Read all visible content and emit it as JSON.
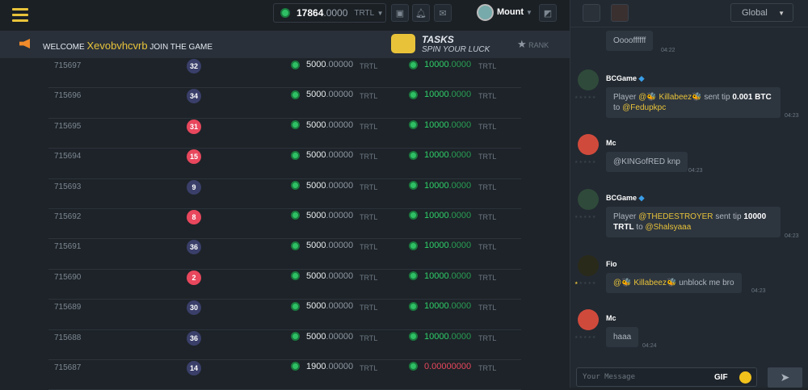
{
  "header": {
    "balance_int": "17864",
    "balance_dec": ".0000",
    "currency": "TRTL",
    "username": "Mount"
  },
  "welcome": {
    "prefix": "WELCOME",
    "name": "Xevobvhcvrb",
    "suffix": "JOIN THE GAME"
  },
  "tasks": {
    "title": "TASKS",
    "subtitle": "SPIN YOUR LUCK"
  },
  "rank_label": "RANK",
  "rows": [
    {
      "id": "715697",
      "num": "32",
      "color": "blue",
      "bet_int": "5000",
      "bet_dec": ".00000",
      "bet_cur": "TRTL",
      "pay_int": "10000",
      "pay_dec": ".0000",
      "pay_cur": "TRTL",
      "win": true
    },
    {
      "id": "715696",
      "num": "34",
      "color": "blue",
      "bet_int": "5000",
      "bet_dec": ".00000",
      "bet_cur": "TRTL",
      "pay_int": "10000",
      "pay_dec": ".0000",
      "pay_cur": "TRTL",
      "win": true
    },
    {
      "id": "715695",
      "num": "31",
      "color": "red",
      "bet_int": "5000",
      "bet_dec": ".00000",
      "bet_cur": "TRTL",
      "pay_int": "10000",
      "pay_dec": ".0000",
      "pay_cur": "TRTL",
      "win": true
    },
    {
      "id": "715694",
      "num": "15",
      "color": "red",
      "bet_int": "5000",
      "bet_dec": ".00000",
      "bet_cur": "TRTL",
      "pay_int": "10000",
      "pay_dec": ".0000",
      "pay_cur": "TRTL",
      "win": true
    },
    {
      "id": "715693",
      "num": "9",
      "color": "blue",
      "bet_int": "5000",
      "bet_dec": ".00000",
      "bet_cur": "TRTL",
      "pay_int": "10000",
      "pay_dec": ".0000",
      "pay_cur": "TRTL",
      "win": true
    },
    {
      "id": "715692",
      "num": "8",
      "color": "red",
      "bet_int": "5000",
      "bet_dec": ".00000",
      "bet_cur": "TRTL",
      "pay_int": "10000",
      "pay_dec": ".0000",
      "pay_cur": "TRTL",
      "win": true
    },
    {
      "id": "715691",
      "num": "36",
      "color": "blue",
      "bet_int": "5000",
      "bet_dec": ".00000",
      "bet_cur": "TRTL",
      "pay_int": "10000",
      "pay_dec": ".0000",
      "pay_cur": "TRTL",
      "win": true
    },
    {
      "id": "715690",
      "num": "2",
      "color": "red",
      "bet_int": "5000",
      "bet_dec": ".00000",
      "bet_cur": "TRTL",
      "pay_int": "10000",
      "pay_dec": ".0000",
      "pay_cur": "TRTL",
      "win": true
    },
    {
      "id": "715689",
      "num": "30",
      "color": "blue",
      "bet_int": "5000",
      "bet_dec": ".00000",
      "bet_cur": "TRTL",
      "pay_int": "10000",
      "pay_dec": ".0000",
      "pay_cur": "TRTL",
      "win": true
    },
    {
      "id": "715688",
      "num": "36",
      "color": "blue",
      "bet_int": "5000",
      "bet_dec": ".00000",
      "bet_cur": "TRTL",
      "pay_int": "10000",
      "pay_dec": ".0000",
      "pay_cur": "TRTL",
      "win": true
    },
    {
      "id": "715687",
      "num": "14",
      "color": "blue",
      "bet_int": "1900",
      "bet_dec": ".00000",
      "bet_cur": "TRTL",
      "pay_int": "0",
      "pay_dec": ".00000000",
      "pay_cur": "TRTL",
      "win": false
    }
  ],
  "chat": {
    "channel": "Global",
    "messages": [
      {
        "text": "Ooooffffff",
        "time": "04:22"
      },
      {
        "user": "BCGame",
        "p1": "Player",
        "m1": "@🐝 Killabeez🐝",
        "p2": "sent tip",
        "b1": "0.001 BTC",
        "p3": "to",
        "m2": "@Fedupkpc",
        "time": "04:23"
      },
      {
        "user": "Mc",
        "text": "@KINGofRED knp",
        "time": "04:23"
      },
      {
        "user": "BCGame",
        "p1": "Player",
        "m1": "@THEDESTROYER",
        "p2": "sent tip",
        "b1": "10000 TRTL",
        "p3": "to",
        "m2": "@Shalsyaaa",
        "time": "04:23"
      },
      {
        "user": "Fio",
        "m1": "@🐝 Killabeez🐝",
        "p2": "unblock me bro",
        "time": "04:23"
      },
      {
        "user": "Mc",
        "text": "haaa",
        "time": "04:24"
      }
    ],
    "placeholder": "Your Message",
    "gif_label": "GIF"
  },
  "colors": {
    "accent": "#e8c33a",
    "green": "#2fd06a",
    "red": "#e8475d",
    "blue_badge": "#3a3f6a"
  }
}
